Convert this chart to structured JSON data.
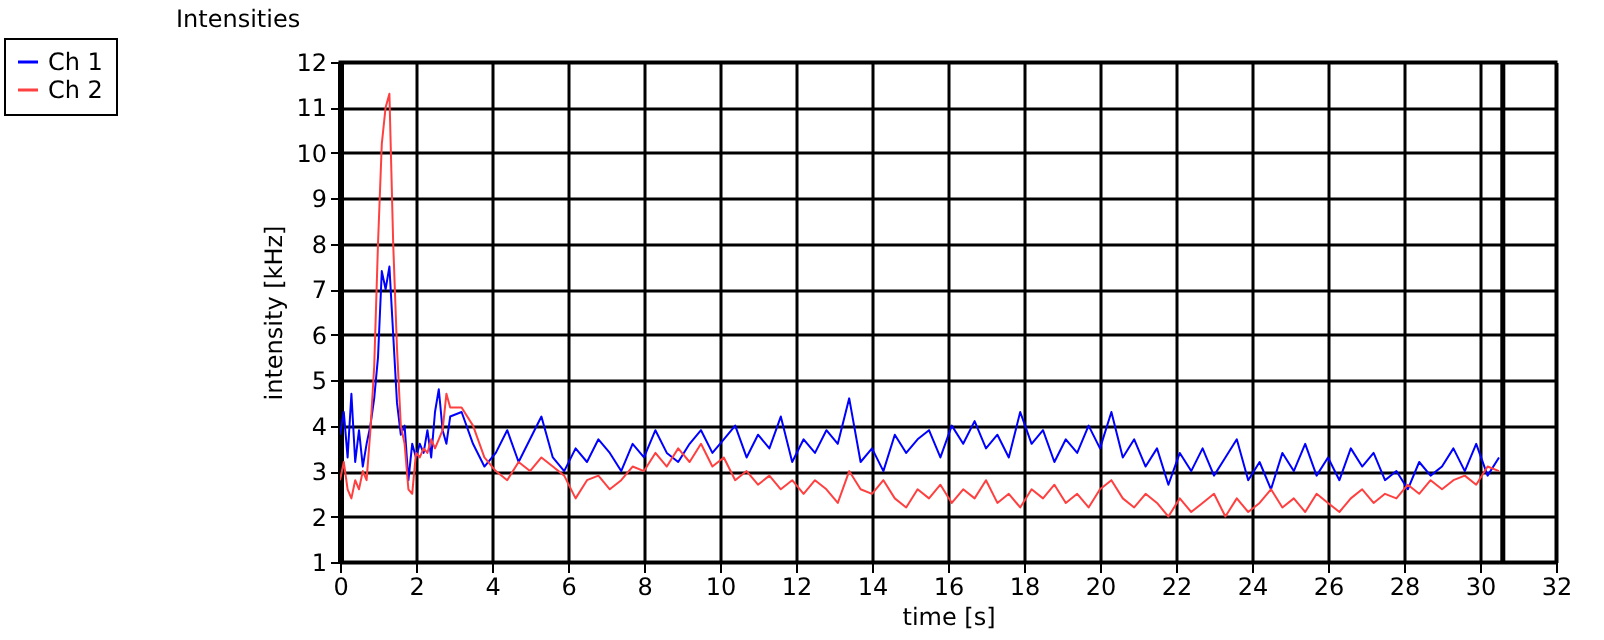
{
  "chart_data": {
    "type": "line",
    "title": "Intensities",
    "xlabel": "time [s]",
    "ylabel": "intensity [kHz]",
    "xlim": [
      0,
      32
    ],
    "ylim": [
      1,
      12
    ],
    "xticks": [
      0,
      2,
      4,
      6,
      8,
      10,
      12,
      14,
      16,
      18,
      20,
      22,
      24,
      26,
      28,
      30,
      32
    ],
    "yticks": [
      1,
      2,
      3,
      4,
      5,
      6,
      7,
      8,
      9,
      10,
      11,
      12
    ],
    "grid": true,
    "legend": "top left",
    "marker": "none",
    "line_style": "solid",
    "ref_lines": [
      {
        "axis": "x",
        "value": 30.6,
        "color": "#000000"
      }
    ],
    "x": [
      0,
      0.1,
      0.2,
      0.3,
      0.4,
      0.5,
      0.6,
      0.7,
      0.8,
      0.9,
      1.0,
      1.1,
      1.2,
      1.3,
      1.4,
      1.5,
      1.6,
      1.7,
      1.8,
      1.9,
      2.0,
      2.1,
      2.2,
      2.3,
      2.4,
      2.5,
      2.6,
      2.7,
      2.8,
      2.9,
      3.2,
      3.5,
      3.8,
      4.1,
      4.4,
      4.7,
      5.0,
      5.3,
      5.6,
      5.9,
      6.2,
      6.5,
      6.8,
      7.1,
      7.4,
      7.7,
      8.0,
      8.3,
      8.6,
      8.9,
      9.2,
      9.5,
      9.8,
      10.1,
      10.4,
      10.7,
      11.0,
      11.3,
      11.6,
      11.9,
      12.2,
      12.5,
      12.8,
      13.1,
      13.4,
      13.7,
      14.0,
      14.3,
      14.6,
      14.9,
      15.2,
      15.5,
      15.8,
      16.1,
      16.4,
      16.7,
      17.0,
      17.3,
      17.6,
      17.9,
      18.2,
      18.5,
      18.8,
      19.1,
      19.4,
      19.7,
      20.0,
      20.3,
      20.6,
      20.9,
      21.2,
      21.5,
      21.8,
      22.1,
      22.4,
      22.7,
      23.0,
      23.3,
      23.6,
      23.9,
      24.2,
      24.5,
      24.8,
      25.1,
      25.4,
      25.7,
      26.0,
      26.3,
      26.6,
      26.9,
      27.2,
      27.5,
      27.8,
      28.1,
      28.4,
      28.7,
      29.0,
      29.3,
      29.6,
      29.9,
      30.2,
      30.5
    ],
    "series": [
      {
        "name": "Ch 1",
        "color": "#0000ff",
        "values": [
          3.8,
          4.3,
          3.3,
          4.7,
          3.2,
          3.9,
          3.1,
          3.6,
          4.0,
          4.6,
          5.5,
          7.4,
          7.0,
          7.5,
          6.0,
          4.5,
          3.8,
          4.0,
          2.8,
          3.6,
          3.3,
          3.6,
          3.4,
          3.9,
          3.3,
          4.3,
          4.8,
          3.9,
          3.6,
          4.2,
          4.3,
          3.6,
          3.1,
          3.4,
          3.9,
          3.2,
          3.7,
          4.2,
          3.3,
          3.0,
          3.5,
          3.2,
          3.7,
          3.4,
          3.0,
          3.6,
          3.3,
          3.9,
          3.4,
          3.2,
          3.6,
          3.9,
          3.4,
          3.7,
          4.0,
          3.3,
          3.8,
          3.5,
          4.2,
          3.2,
          3.7,
          3.4,
          3.9,
          3.6,
          4.6,
          3.2,
          3.5,
          3.0,
          3.8,
          3.4,
          3.7,
          3.9,
          3.3,
          4.0,
          3.6,
          4.1,
          3.5,
          3.8,
          3.3,
          4.3,
          3.6,
          3.9,
          3.2,
          3.7,
          3.4,
          4.0,
          3.5,
          4.3,
          3.3,
          3.7,
          3.1,
          3.5,
          2.7,
          3.4,
          3.0,
          3.5,
          2.9,
          3.3,
          3.7,
          2.8,
          3.2,
          2.6,
          3.4,
          3.0,
          3.6,
          2.9,
          3.3,
          2.8,
          3.5,
          3.1,
          3.4,
          2.8,
          3.0,
          2.6,
          3.2,
          2.9,
          3.1,
          3.5,
          3.0,
          3.6,
          2.9,
          3.3
        ]
      },
      {
        "name": "Ch 2",
        "color": "#ff4040",
        "values": [
          2.8,
          3.2,
          2.6,
          2.4,
          2.8,
          2.6,
          3.0,
          2.8,
          3.9,
          5.3,
          8.0,
          10.2,
          11.0,
          11.3,
          8.0,
          5.7,
          4.0,
          3.6,
          2.6,
          2.5,
          3.4,
          3.3,
          3.5,
          3.4,
          3.7,
          3.5,
          3.7,
          3.9,
          4.7,
          4.4,
          4.4,
          4.0,
          3.3,
          3.0,
          2.8,
          3.2,
          3.0,
          3.3,
          3.1,
          2.9,
          2.4,
          2.8,
          2.9,
          2.6,
          2.8,
          3.1,
          3.0,
          3.4,
          3.1,
          3.5,
          3.2,
          3.6,
          3.1,
          3.3,
          2.8,
          3.0,
          2.7,
          2.9,
          2.6,
          2.8,
          2.5,
          2.8,
          2.6,
          2.3,
          3.0,
          2.6,
          2.5,
          2.8,
          2.4,
          2.2,
          2.6,
          2.4,
          2.7,
          2.3,
          2.6,
          2.4,
          2.8,
          2.3,
          2.5,
          2.2,
          2.6,
          2.4,
          2.7,
          2.3,
          2.5,
          2.2,
          2.6,
          2.8,
          2.4,
          2.2,
          2.5,
          2.3,
          2.0,
          2.4,
          2.1,
          2.3,
          2.5,
          2.0,
          2.4,
          2.1,
          2.3,
          2.6,
          2.2,
          2.4,
          2.1,
          2.5,
          2.3,
          2.1,
          2.4,
          2.6,
          2.3,
          2.5,
          2.4,
          2.7,
          2.5,
          2.8,
          2.6,
          2.8,
          2.9,
          2.7,
          3.1,
          3.0
        ]
      }
    ]
  }
}
